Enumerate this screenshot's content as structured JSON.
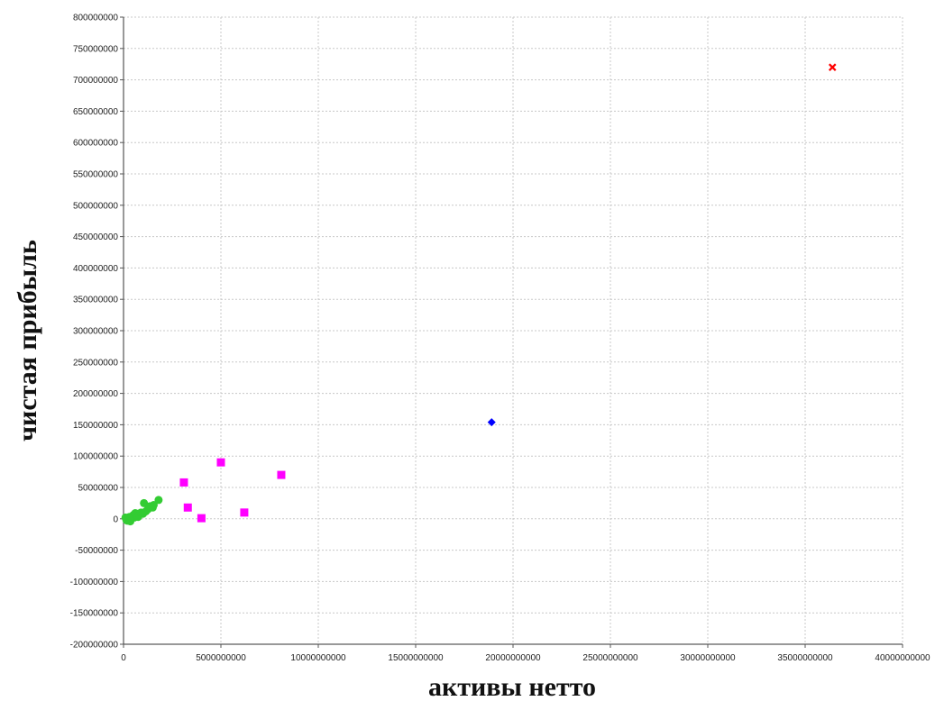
{
  "chart_data": {
    "type": "scatter",
    "title": "",
    "xlabel": "активы нетто",
    "ylabel": "чистая прибыль",
    "xlim": [
      0,
      40000000000
    ],
    "ylim": [
      -200000000,
      800000000
    ],
    "grid": true,
    "x_ticks": [
      0,
      5000000000,
      10000000000,
      15000000000,
      20000000000,
      25000000000,
      30000000000,
      35000000000,
      40000000000
    ],
    "y_ticks": [
      -200000000,
      -150000000,
      -100000000,
      -50000000,
      0,
      50000000,
      100000000,
      150000000,
      200000000,
      250000000,
      300000000,
      350000000,
      400000000,
      450000000,
      500000000,
      550000000,
      600000000,
      650000000,
      700000000,
      750000000,
      800000000
    ],
    "series": [
      {
        "marker": "circle",
        "color": "#33cc33",
        "points": [
          [
            100000000,
            2000000
          ],
          [
            200000000,
            -3000000
          ],
          [
            300000000,
            3000000
          ],
          [
            400000000,
            0
          ],
          [
            450000000,
            4000000
          ],
          [
            500000000,
            6000000
          ],
          [
            550000000,
            2000000
          ],
          [
            600000000,
            9000000
          ],
          [
            650000000,
            5000000
          ],
          [
            700000000,
            8000000
          ],
          [
            750000000,
            3000000
          ],
          [
            800000000,
            6000000
          ],
          [
            900000000,
            10000000
          ],
          [
            1000000000,
            8000000
          ],
          [
            1050000000,
            25000000
          ],
          [
            1150000000,
            12000000
          ],
          [
            1250000000,
            15000000
          ],
          [
            1350000000,
            20000000
          ],
          [
            1500000000,
            18000000
          ],
          [
            1550000000,
            22000000
          ],
          [
            1800000000,
            30000000
          ],
          [
            150000000,
            -2000000
          ],
          [
            250000000,
            1000000
          ],
          [
            350000000,
            -4000000
          ]
        ]
      },
      {
        "marker": "square",
        "color": "#ff00ff",
        "points": [
          [
            3100000000,
            58000000
          ],
          [
            3300000000,
            18000000
          ],
          [
            4000000000,
            1000000
          ],
          [
            5000000000,
            90000000
          ],
          [
            6200000000,
            10000000
          ],
          [
            8100000000,
            70000000
          ]
        ]
      },
      {
        "marker": "diamond",
        "color": "#0000ff",
        "points": [
          [
            18900000000,
            154000000
          ]
        ]
      },
      {
        "marker": "cross",
        "color": "#ff0000",
        "points": [
          [
            36400000000,
            720000000
          ]
        ]
      }
    ]
  }
}
